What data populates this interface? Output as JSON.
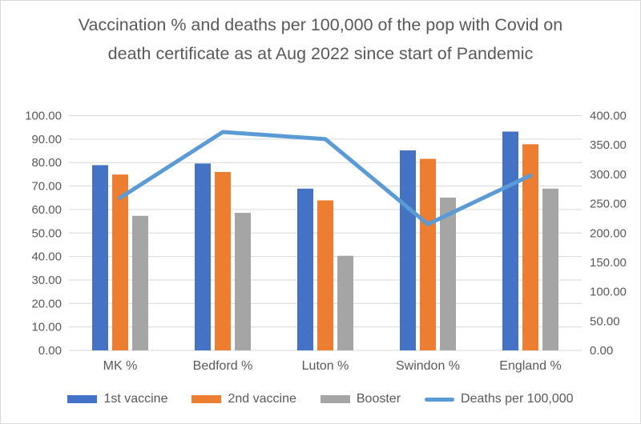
{
  "page": {
    "background_color": "#ffffff",
    "border_color": "#d9d9d9",
    "text_color": "#595959",
    "grid_color": "#d9d9d9"
  },
  "chart_data": {
    "type": "combo",
    "title": "Vaccination % and deaths per 100,000 of the pop with Covid on death certificate as at Aug 2022 since start of Pandemic",
    "categories": [
      "MK %",
      "Bedford %",
      "Luton %",
      "Swindon %",
      "England %"
    ],
    "series": [
      {
        "name": "1st vaccine",
        "type": "bar",
        "axis": "left",
        "color": "#4472C4",
        "values": [
          78.9,
          79.6,
          68.9,
          85.2,
          93.2
        ]
      },
      {
        "name": "2nd vaccine",
        "type": "bar",
        "axis": "left",
        "color": "#ED7D31",
        "values": [
          74.9,
          76.0,
          63.9,
          81.6,
          87.8
        ]
      },
      {
        "name": "Booster",
        "type": "bar",
        "axis": "left",
        "color": "#A5A5A5",
        "values": [
          57.3,
          58.6,
          40.3,
          65.1,
          68.9
        ]
      },
      {
        "name": "Deaths per 100,000",
        "type": "line",
        "axis": "right",
        "color": "#5B9BD5",
        "values": [
          260,
          372,
          360,
          215,
          298
        ]
      }
    ],
    "left_axis": {
      "min": 0,
      "max": 100,
      "step": 10,
      "tick_labels": [
        "100.00",
        "90.00",
        "80.00",
        "70.00",
        "60.00",
        "50.00",
        "40.00",
        "30.00",
        "20.00",
        "10.00",
        "0.00"
      ]
    },
    "right_axis": {
      "min": 0,
      "max": 400,
      "step": 50,
      "tick_labels": [
        "400.00",
        "350.00",
        "300.00",
        "250.00",
        "200.00",
        "150.00",
        "100.00",
        "50.00",
        "0.00"
      ]
    },
    "grid": true,
    "legend_position": "bottom"
  }
}
